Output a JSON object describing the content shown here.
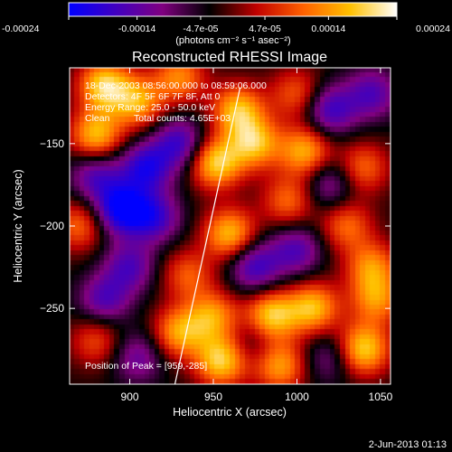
{
  "colorbar": {
    "ticks": [
      "-0.00024",
      "-0.00014",
      "-4.7e-05",
      "4.7e-05",
      "0.00014",
      "0.00024"
    ],
    "tick_values": [
      -0.00024,
      -0.00014,
      -4.7e-05,
      4.7e-05,
      0.00014,
      0.00024
    ],
    "range": [
      -0.00024,
      0.00024
    ],
    "units": "(photons cm⁻² s⁻¹ asec⁻²)",
    "colors": [
      "#0000ff",
      "#4000c0",
      "#800080",
      "#000000",
      "#c00000",
      "#ff6000",
      "#ffc000",
      "#ffffff"
    ]
  },
  "chart_data": {
    "type": "heatmap",
    "title": "Reconstructed RHESSI Image",
    "xlabel": "Heliocentric X (arcsec)",
    "ylabel": "Heliocentric Y (arcsec)",
    "xlim": [
      864,
      1056
    ],
    "ylim": [
      -296,
      -104
    ],
    "xticks": [
      900,
      950,
      1000,
      1050
    ],
    "yticks": [
      -150,
      -200,
      -250
    ],
    "annotations": {
      "time": "18-Dec-2003 08:56:00.000 to 08:59:06.000",
      "detectors": "Detectors: 4F 5F 6F 7F 8F, Att 0",
      "energy": "Energy Range: 25.0 - 50.0 keV",
      "method": "Clean",
      "counts": "Total counts: 4.65E+03",
      "peak": "Position of Peak = [959,-285]"
    },
    "limb_line": [
      [
        927,
        -296
      ],
      [
        966,
        -116
      ]
    ],
    "blobs": [
      {
        "x": 885,
        "y": -115,
        "v": 1.0
      },
      {
        "x": 905,
        "y": -125,
        "v": 0.8
      },
      {
        "x": 930,
        "y": -110,
        "v": 0.7
      },
      {
        "x": 880,
        "y": -145,
        "v": 0.9
      },
      {
        "x": 965,
        "y": -130,
        "v": 0.9
      },
      {
        "x": 1000,
        "y": -120,
        "v": 0.55
      },
      {
        "x": 952,
        "y": -162,
        "v": 1.0
      },
      {
        "x": 975,
        "y": -150,
        "v": 0.9
      },
      {
        "x": 1005,
        "y": -155,
        "v": 0.85
      },
      {
        "x": 1040,
        "y": -165,
        "v": 0.6
      },
      {
        "x": 995,
        "y": -185,
        "v": 0.6
      },
      {
        "x": 960,
        "y": -205,
        "v": 0.9
      },
      {
        "x": 1030,
        "y": -200,
        "v": 0.6
      },
      {
        "x": 1045,
        "y": -225,
        "v": 0.7
      },
      {
        "x": 870,
        "y": -200,
        "v": 0.6
      },
      {
        "x": 935,
        "y": -230,
        "v": 0.55
      },
      {
        "x": 930,
        "y": -265,
        "v": 0.8
      },
      {
        "x": 950,
        "y": -255,
        "v": 0.75
      },
      {
        "x": 985,
        "y": -255,
        "v": 1.0
      },
      {
        "x": 1010,
        "y": -250,
        "v": 0.9
      },
      {
        "x": 955,
        "y": -282,
        "v": 1.0
      },
      {
        "x": 990,
        "y": -285,
        "v": 0.8
      },
      {
        "x": 1040,
        "y": -275,
        "v": 1.0
      },
      {
        "x": 1048,
        "y": -245,
        "v": 0.7
      },
      {
        "x": 880,
        "y": -270,
        "v": 0.5
      },
      {
        "x": 915,
        "y": -195,
        "v": -0.7
      },
      {
        "x": 895,
        "y": -190,
        "v": -1.0
      },
      {
        "x": 910,
        "y": -165,
        "v": -0.8
      },
      {
        "x": 930,
        "y": -150,
        "v": -0.7
      },
      {
        "x": 880,
        "y": -170,
        "v": -0.6
      },
      {
        "x": 900,
        "y": -225,
        "v": -0.6
      },
      {
        "x": 1020,
        "y": -130,
        "v": -0.7
      },
      {
        "x": 1045,
        "y": -120,
        "v": -0.6
      },
      {
        "x": 1020,
        "y": -175,
        "v": -0.5
      },
      {
        "x": 975,
        "y": -225,
        "v": -0.7
      },
      {
        "x": 1000,
        "y": -215,
        "v": -0.6
      },
      {
        "x": 885,
        "y": -245,
        "v": -0.6
      },
      {
        "x": 905,
        "y": -280,
        "v": -0.5
      },
      {
        "x": 1020,
        "y": -280,
        "v": -0.4
      },
      {
        "x": 975,
        "y": -270,
        "v": -0.3
      }
    ]
  },
  "footer": {
    "timestamp": "2-Jun-2013 01:13"
  }
}
